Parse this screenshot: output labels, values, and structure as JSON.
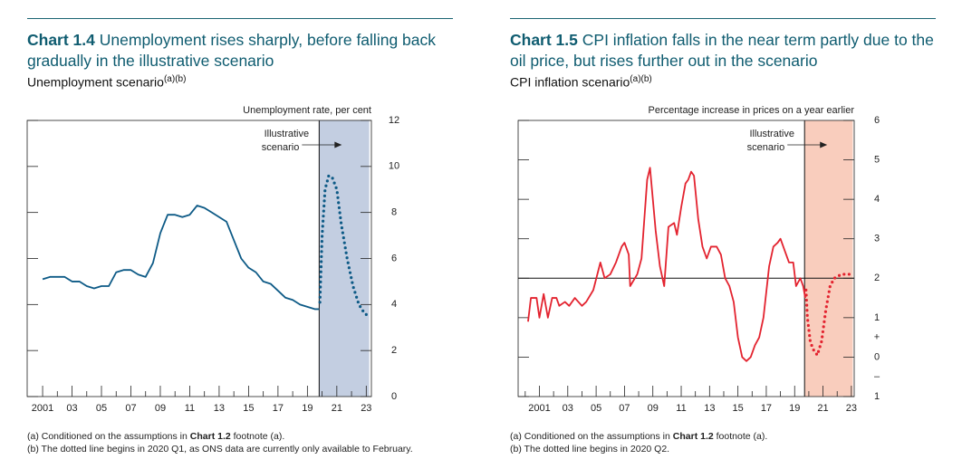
{
  "chart_data": [
    {
      "type": "line",
      "title_label": "Chart 1.4",
      "title": "Unemployment rises sharply, before falling back gradually in the illustrative scenario",
      "subtitle": "Unemployment scenario",
      "subtitle_note": "(a)(b)",
      "y_axis_label": "Unemployment rate, per cent",
      "xlim": [
        1999.95,
        2023.35
      ],
      "xticks": [
        2001,
        {
          "value": 2003,
          "label": "03"
        },
        {
          "value": 2005,
          "label": "05"
        },
        {
          "value": 2007,
          "label": "07"
        },
        {
          "value": 2009,
          "label": "09"
        },
        {
          "value": 2011,
          "label": "11"
        },
        {
          "value": 2013,
          "label": "13"
        },
        {
          "value": 2015,
          "label": "15"
        },
        {
          "value": 2017,
          "label": "17"
        },
        {
          "value": 2019,
          "label": "19"
        },
        {
          "value": 2021,
          "label": "21"
        },
        {
          "value": 2023,
          "label": "23"
        }
      ],
      "xticks_minor": [
        2002,
        2004,
        2006,
        2008,
        2010,
        2012,
        2014,
        2016,
        2018,
        2020,
        2022
      ],
      "ylim": [
        0,
        12
      ],
      "yticks": [
        0,
        2,
        4,
        6,
        8,
        10,
        12
      ],
      "shaded_x": [
        2019.8,
        2023.2
      ],
      "shade_color": "#c3cee1",
      "annotation": [
        "Illustrative",
        "scenario"
      ],
      "series": [
        {
          "color": "#0d5a86",
          "style": "solid",
          "x": [
            2001,
            2001.5,
            2002,
            2002.5,
            2003,
            2003.5,
            2004,
            2004.5,
            2005,
            2005.5,
            2006,
            2006.5,
            2007,
            2007.5,
            2008,
            2008.5,
            2009,
            2009.5,
            2010,
            2010.5,
            2011,
            2011.5,
            2012,
            2012.5,
            2013,
            2013.5,
            2014,
            2014.5,
            2015,
            2015.5,
            2016,
            2016.5,
            2017,
            2017.5,
            2018,
            2018.5,
            2019,
            2019.5,
            2019.8
          ],
          "values": [
            5.1,
            5.2,
            5.2,
            5.2,
            5.0,
            5.0,
            4.8,
            4.7,
            4.8,
            4.8,
            5.4,
            5.5,
            5.5,
            5.3,
            5.2,
            5.8,
            7.1,
            7.9,
            7.9,
            7.8,
            7.9,
            8.3,
            8.2,
            8.0,
            7.8,
            7.6,
            6.8,
            6.0,
            5.6,
            5.4,
            5.0,
            4.9,
            4.6,
            4.3,
            4.2,
            4.0,
            3.9,
            3.8,
            3.8
          ]
        },
        {
          "color": "#0d5a86",
          "style": "dotted",
          "x": [
            2019.85,
            2020.0,
            2020.2,
            2020.45,
            2020.7,
            2021.0,
            2021.3,
            2021.7,
            2022.1,
            2022.5,
            2022.9,
            2023.2
          ],
          "values": [
            4.1,
            7.0,
            9.0,
            9.6,
            9.5,
            9.0,
            7.5,
            6.0,
            4.8,
            4.0,
            3.6,
            3.5
          ]
        }
      ],
      "footnotes": [
        [
          "(a) Conditioned on the assumptions in ",
          "Chart 1.2",
          " footnote (a)."
        ],
        [
          "(b) The dotted line begins in 2020 Q1, as ONS data are currently only available to February."
        ]
      ]
    },
    {
      "type": "line",
      "title_label": "Chart 1.5",
      "title": "CPI inflation falls in the near term partly due to the oil price, but rises further out in the scenario",
      "subtitle": "CPI inflation scenario",
      "subtitle_note": "(a)(b)",
      "y_axis_label": "Percentage increase in prices on a year earlier",
      "xlim": [
        1999.5,
        2023.2
      ],
      "xticks": [
        2001,
        {
          "value": 2003,
          "label": "03"
        },
        {
          "value": 2005,
          "label": "05"
        },
        {
          "value": 2007,
          "label": "07"
        },
        {
          "value": 2009,
          "label": "09"
        },
        {
          "value": 2011,
          "label": "11"
        },
        {
          "value": 2013,
          "label": "13"
        },
        {
          "value": 2015,
          "label": "15"
        },
        {
          "value": 2017,
          "label": "17"
        },
        {
          "value": 2019,
          "label": "19"
        },
        {
          "value": 2021,
          "label": "21"
        },
        {
          "value": 2023,
          "label": "23"
        }
      ],
      "xticks_minor": [
        2000,
        2002,
        2004,
        2006,
        2008,
        2010,
        2012,
        2014,
        2016,
        2018,
        2020,
        2022
      ],
      "ylim": [
        -1,
        6
      ],
      "yticks": [
        {
          "value": -1,
          "label": "1"
        },
        0,
        1,
        2,
        3,
        4,
        5,
        6
      ],
      "sign_labels": [
        "+",
        "–"
      ],
      "hline": 2,
      "shaded_x": [
        2019.7,
        2023.1
      ],
      "shade_color": "#f9cdbd",
      "annotation": [
        "Illustrative",
        "scenario"
      ],
      "series": [
        {
          "color": "#e3232f",
          "style": "solid",
          "x": [
            2000.2,
            2000.4,
            2000.8,
            2001,
            2001.3,
            2001.6,
            2001.9,
            2002.2,
            2002.4,
            2002.8,
            2003.1,
            2003.5,
            2004,
            2004.3,
            2004.8,
            2005.3,
            2005.6,
            2006,
            2006.4,
            2006.8,
            2007,
            2007.3,
            2007.4,
            2007.9,
            2008.2,
            2008.6,
            2008.8,
            2009.2,
            2009.5,
            2009.8,
            2010.1,
            2010.5,
            2010.7,
            2011,
            2011.3,
            2011.5,
            2011.7,
            2011.9,
            2012.2,
            2012.5,
            2012.8,
            2013.1,
            2013.5,
            2013.8,
            2014.1,
            2014.4,
            2014.7,
            2015,
            2015.3,
            2015.6,
            2015.9,
            2016.2,
            2016.5,
            2016.8,
            2017.2,
            2017.5,
            2017.8,
            2018,
            2018.3,
            2018.6,
            2018.9,
            2019.1,
            2019.4,
            2019.6,
            2019.75
          ],
          "values": [
            0.9,
            1.5,
            1.5,
            1.0,
            1.6,
            1.0,
            1.5,
            1.5,
            1.3,
            1.4,
            1.3,
            1.5,
            1.3,
            1.4,
            1.7,
            2.4,
            2.0,
            2.1,
            2.4,
            2.8,
            2.9,
            2.6,
            1.8,
            2.1,
            2.5,
            4.5,
            4.8,
            3.2,
            2.3,
            1.8,
            3.3,
            3.4,
            3.1,
            3.8,
            4.4,
            4.5,
            4.7,
            4.6,
            3.5,
            2.8,
            2.5,
            2.8,
            2.8,
            2.6,
            2.0,
            1.8,
            1.4,
            0.5,
            0.0,
            -0.1,
            0.0,
            0.3,
            0.5,
            1.0,
            2.3,
            2.8,
            2.9,
            3.0,
            2.7,
            2.4,
            2.4,
            1.8,
            2.0,
            1.8,
            1.5
          ]
        },
        {
          "color": "#e3232f",
          "style": "dotted",
          "x": [
            2019.8,
            2019.9,
            2020.1,
            2020.3,
            2020.6,
            2020.9,
            2021.2,
            2021.5,
            2021.8,
            2022.3,
            2022.7,
            2023.0
          ],
          "values": [
            1.7,
            1.0,
            0.4,
            0.2,
            0.05,
            0.4,
            1.2,
            1.8,
            2.0,
            2.1,
            2.1,
            2.1
          ]
        }
      ],
      "footnotes": [
        [
          "(a) Conditioned on the assumptions in ",
          "Chart 1.2",
          " footnote (a)."
        ],
        [
          "(b) The dotted line begins in 2020 Q2."
        ]
      ]
    }
  ]
}
